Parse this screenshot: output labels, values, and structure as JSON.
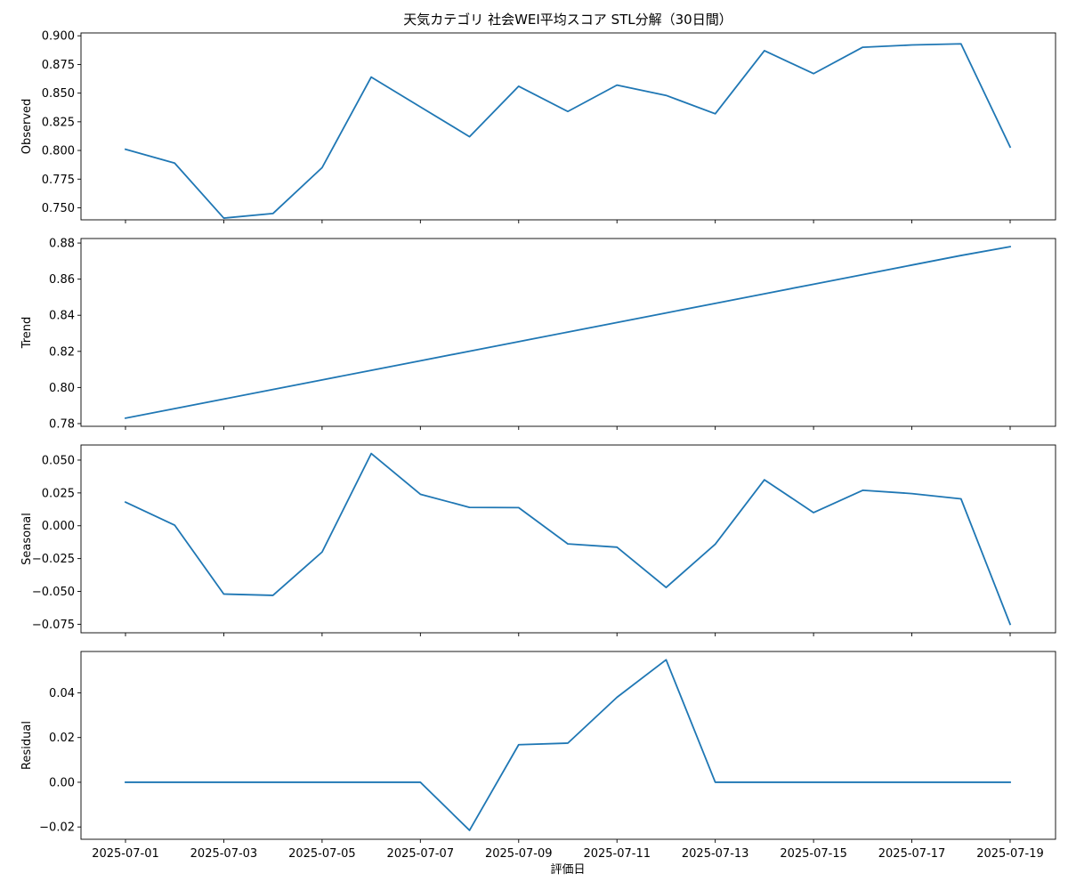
{
  "chart_data": {
    "type": "line",
    "title": "天気カテゴリ 社会WEI平均スコア STL分解（30日間）",
    "xlabel": "評価日",
    "line_color": "#1f77b4",
    "dates": [
      "2025-07-01",
      "2025-07-02",
      "2025-07-03",
      "2025-07-04",
      "2025-07-05",
      "2025-07-06",
      "2025-07-07",
      "2025-07-08",
      "2025-07-09",
      "2025-07-10",
      "2025-07-11",
      "2025-07-12",
      "2025-07-13",
      "2025-07-14",
      "2025-07-15",
      "2025-07-16",
      "2025-07-17",
      "2025-07-18",
      "2025-07-19"
    ],
    "x_ticks": [
      "2025-07-01",
      "2025-07-03",
      "2025-07-05",
      "2025-07-07",
      "2025-07-09",
      "2025-07-11",
      "2025-07-13",
      "2025-07-15",
      "2025-07-17",
      "2025-07-19"
    ],
    "panels": [
      {
        "ylabel": "Observed",
        "ylim": [
          0.7395,
          0.9025
        ],
        "yticks": [
          0.75,
          0.775,
          0.8,
          0.825,
          0.85,
          0.875,
          0.9
        ],
        "ytick_labels": [
          "0.750",
          "0.775",
          "0.800",
          "0.825",
          "0.850",
          "0.875",
          "0.900"
        ],
        "values": [
          0.801,
          0.789,
          0.741,
          0.745,
          0.785,
          0.864,
          0.838,
          0.812,
          0.856,
          0.834,
          0.857,
          0.848,
          0.832,
          0.887,
          0.867,
          0.89,
          0.892,
          0.893,
          0.803
        ]
      },
      {
        "ylabel": "Trend",
        "ylim": [
          0.7785,
          0.8825
        ],
        "yticks": [
          0.78,
          0.8,
          0.82,
          0.84,
          0.86,
          0.88
        ],
        "ytick_labels": [
          "0.78",
          "0.80",
          "0.82",
          "0.84",
          "0.86",
          "0.88"
        ],
        "values": [
          0.783,
          0.7883,
          0.7936,
          0.7989,
          0.8042,
          0.8095,
          0.8148,
          0.8201,
          0.8254,
          0.8307,
          0.836,
          0.8413,
          0.8466,
          0.8519,
          0.8572,
          0.8625,
          0.8678,
          0.8731,
          0.878
        ]
      },
      {
        "ylabel": "Seasonal",
        "ylim": [
          -0.0815,
          0.0615
        ],
        "yticks": [
          -0.075,
          -0.05,
          -0.025,
          0.0,
          0.025,
          0.05
        ],
        "ytick_labels": [
          "−0.075",
          "−0.050",
          "−0.025",
          "0.000",
          "0.025",
          "0.050"
        ],
        "values": [
          0.018,
          0.0005,
          -0.052,
          -0.053,
          -0.02,
          0.055,
          0.024,
          0.014,
          0.0138,
          -0.0138,
          -0.0163,
          -0.047,
          -0.014,
          0.035,
          0.01,
          0.027,
          0.0245,
          0.0205,
          -0.075
        ]
      },
      {
        "ylabel": "Residual",
        "ylim": [
          -0.0255,
          0.0585
        ],
        "yticks": [
          -0.02,
          0.0,
          0.02,
          0.04
        ],
        "ytick_labels": [
          "−0.02",
          "0.00",
          "0.02",
          "0.04"
        ],
        "values": [
          0,
          0,
          0,
          0,
          0,
          0,
          0,
          -0.0215,
          0.0168,
          0.0175,
          0.038,
          0.0548,
          0,
          0,
          0,
          0,
          0,
          0,
          0
        ]
      }
    ]
  }
}
